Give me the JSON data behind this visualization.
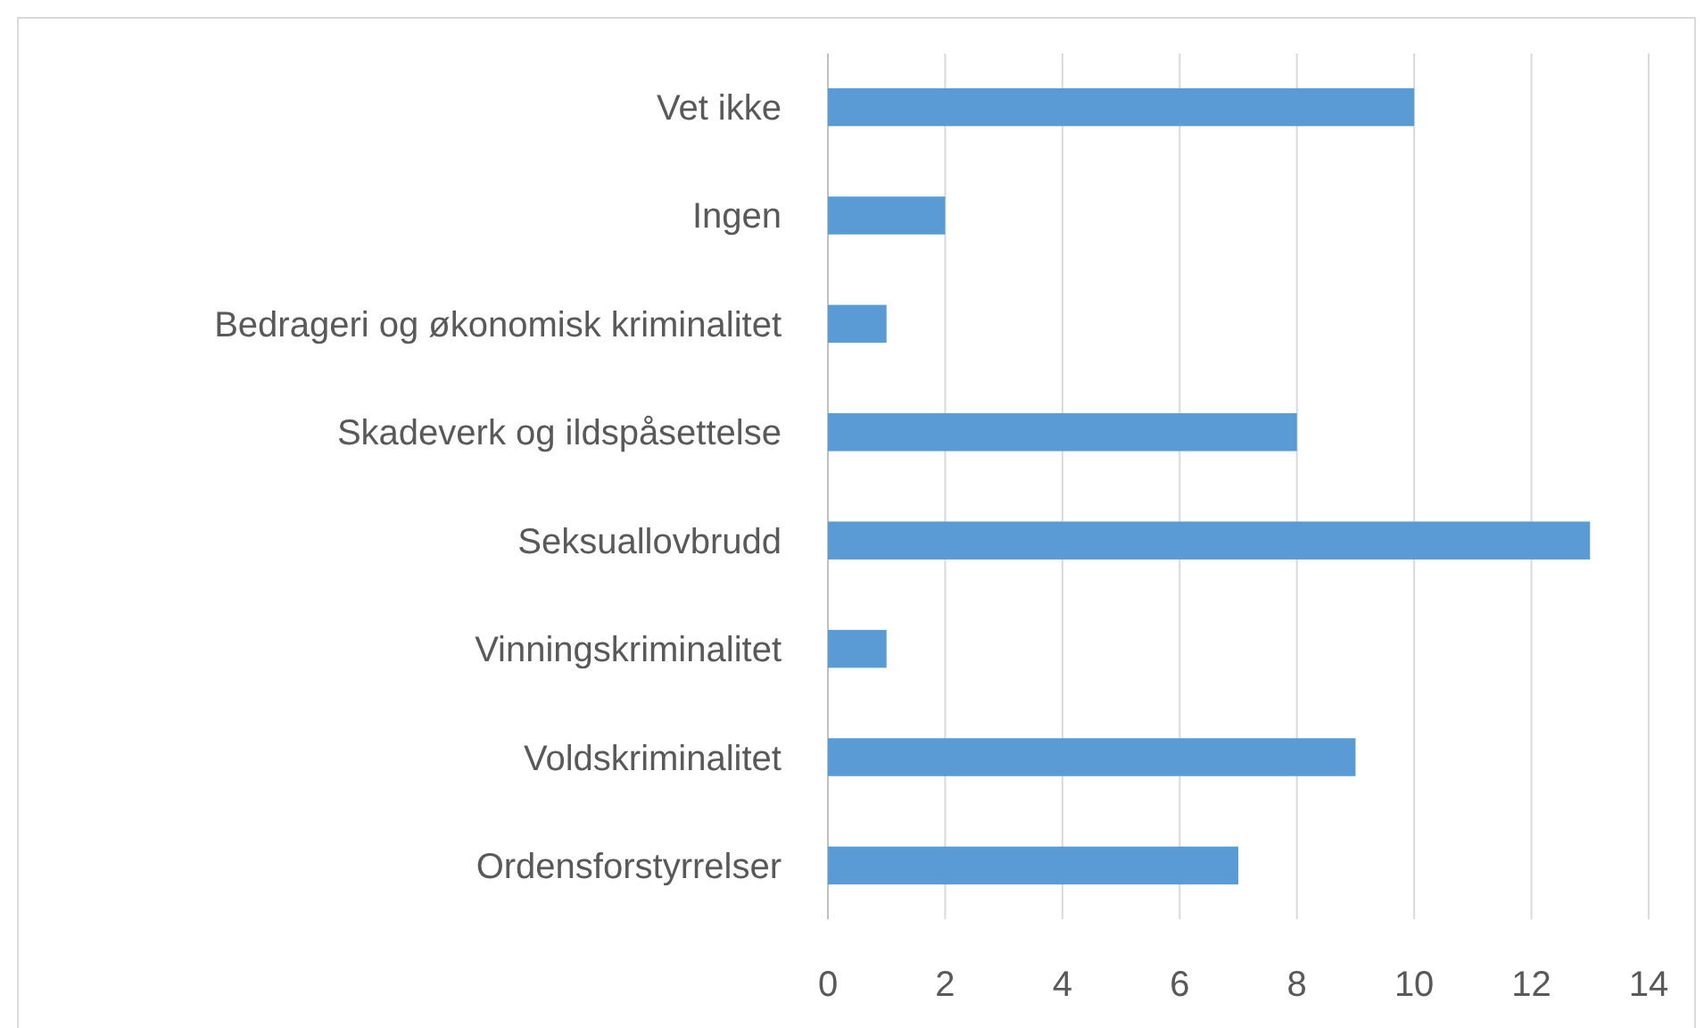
{
  "chart_data": {
    "type": "bar",
    "orientation": "horizontal",
    "categories": [
      "Vet ikke",
      "Ingen",
      "Bedrageri og økonomisk kriminalitet",
      "Skadeverk og ildspåsettelse",
      "Seksuallovbrudd",
      "Vinningskriminalitet",
      "Voldskriminalitet",
      "Ordensforstyrrelser"
    ],
    "values": [
      10,
      2,
      1,
      8,
      13,
      1,
      9,
      7
    ],
    "color": "#5b9bd5",
    "xlim": [
      0,
      14
    ],
    "xticks": [
      0,
      2,
      4,
      6,
      8,
      10,
      12,
      14
    ],
    "grid": "x"
  }
}
